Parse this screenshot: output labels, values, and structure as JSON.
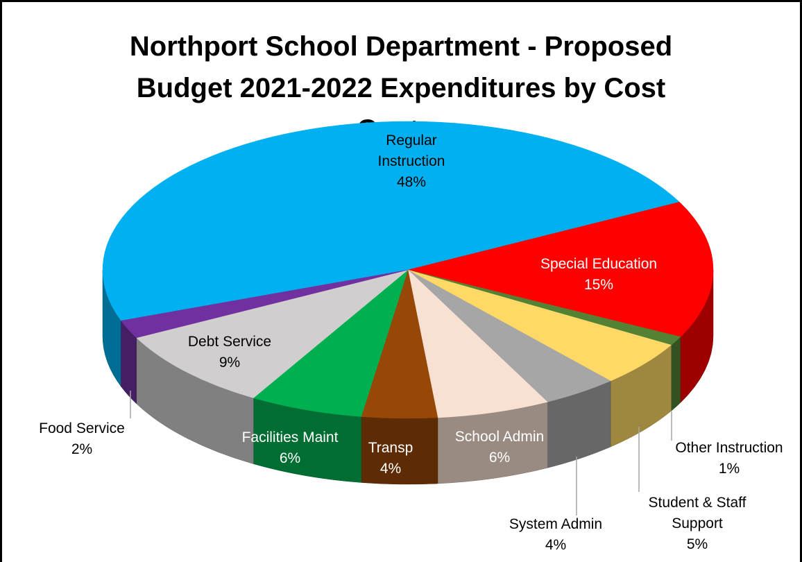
{
  "chart_data": {
    "type": "pie3d",
    "title": "Northport School Department - Proposed Budget 2021-2022 Expenditures by Cost Center",
    "categories": [
      "Regular Instruction",
      "Special Education",
      "Other Instruction",
      "Student & Staff Support",
      "System Admin",
      "School Admin",
      "Transp",
      "Facilities Maint",
      "Debt Service",
      "Food Service"
    ],
    "values": [
      48,
      15,
      1,
      5,
      4,
      6,
      4,
      6,
      9,
      2
    ],
    "value_labels": [
      "48%",
      "15%",
      "1%",
      "5%",
      "4%",
      "6%",
      "4%",
      "6%",
      "9%",
      "2%"
    ],
    "colors": [
      "#00b0f0",
      "#ff0000",
      "#548235",
      "#ffd966",
      "#a6a6a6",
      "#f8e0d2",
      "#974706",
      "#00b050",
      "#d0cece",
      "#7030a0"
    ]
  }
}
